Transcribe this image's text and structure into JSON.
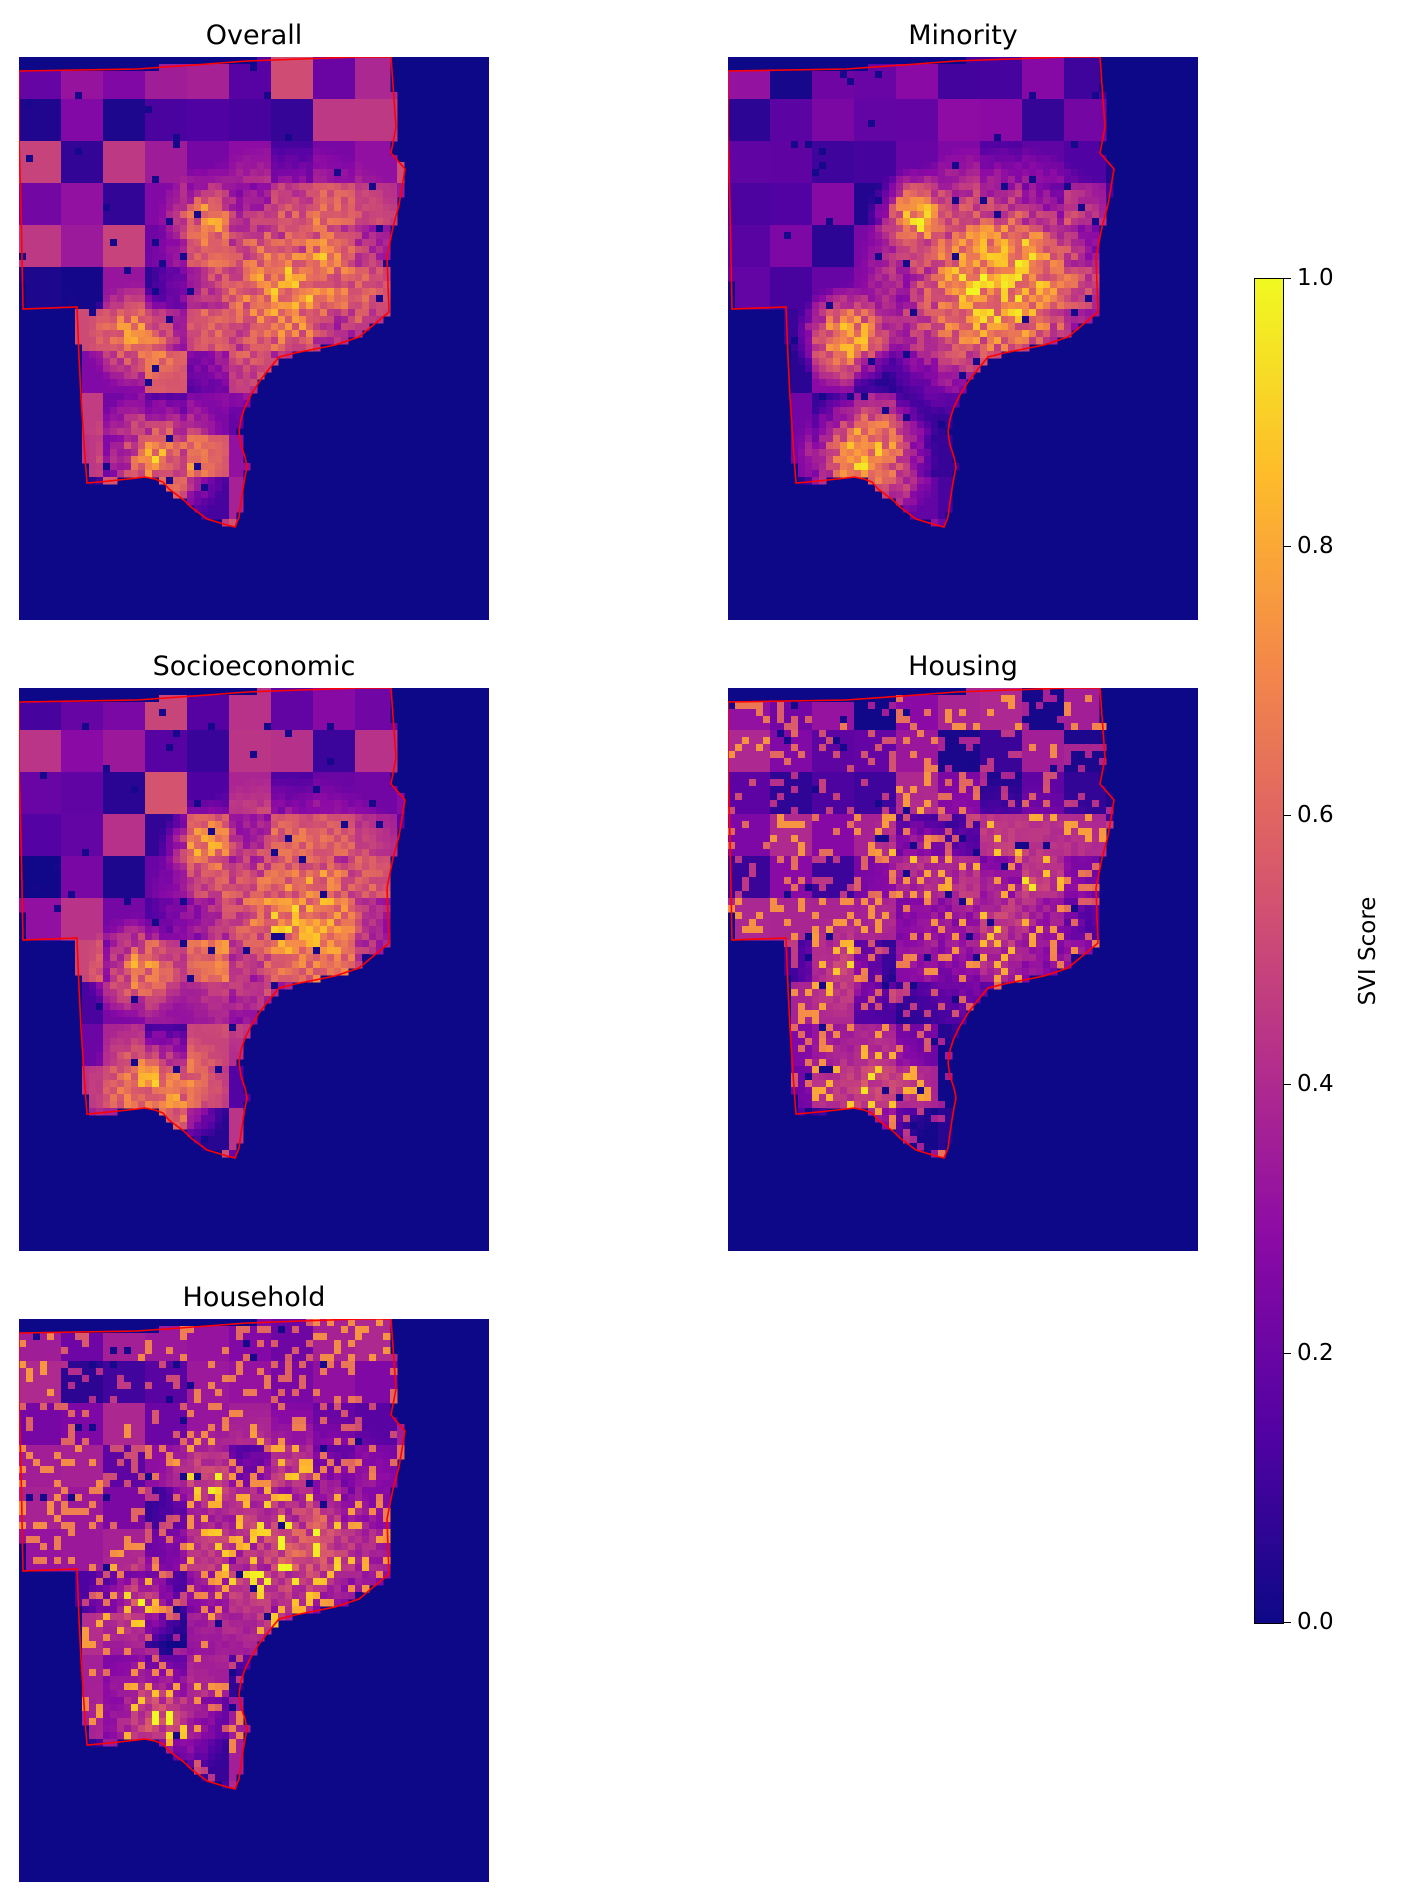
{
  "panels": [
    {
      "id": "overall",
      "title": "Overall"
    },
    {
      "id": "minority",
      "title": "Minority"
    },
    {
      "id": "socioeconomic",
      "title": "Socioeconomic"
    },
    {
      "id": "housing",
      "title": "Housing"
    },
    {
      "id": "household",
      "title": "Household"
    }
  ],
  "colorbar": {
    "label": "SVI Score",
    "ticks": [
      "0.0",
      "0.2",
      "0.4",
      "0.6",
      "0.8",
      "1.0"
    ],
    "range": [
      0,
      1
    ],
    "colormap": "plasma"
  },
  "colors": {
    "background_fill": "#0d0887",
    "boundary": "#ff0000",
    "plasma_stops": [
      "#0d0887",
      "#5302a3",
      "#8b0aa5",
      "#b83289",
      "#db5c68",
      "#f48849",
      "#febd2a",
      "#f0f921"
    ]
  }
}
